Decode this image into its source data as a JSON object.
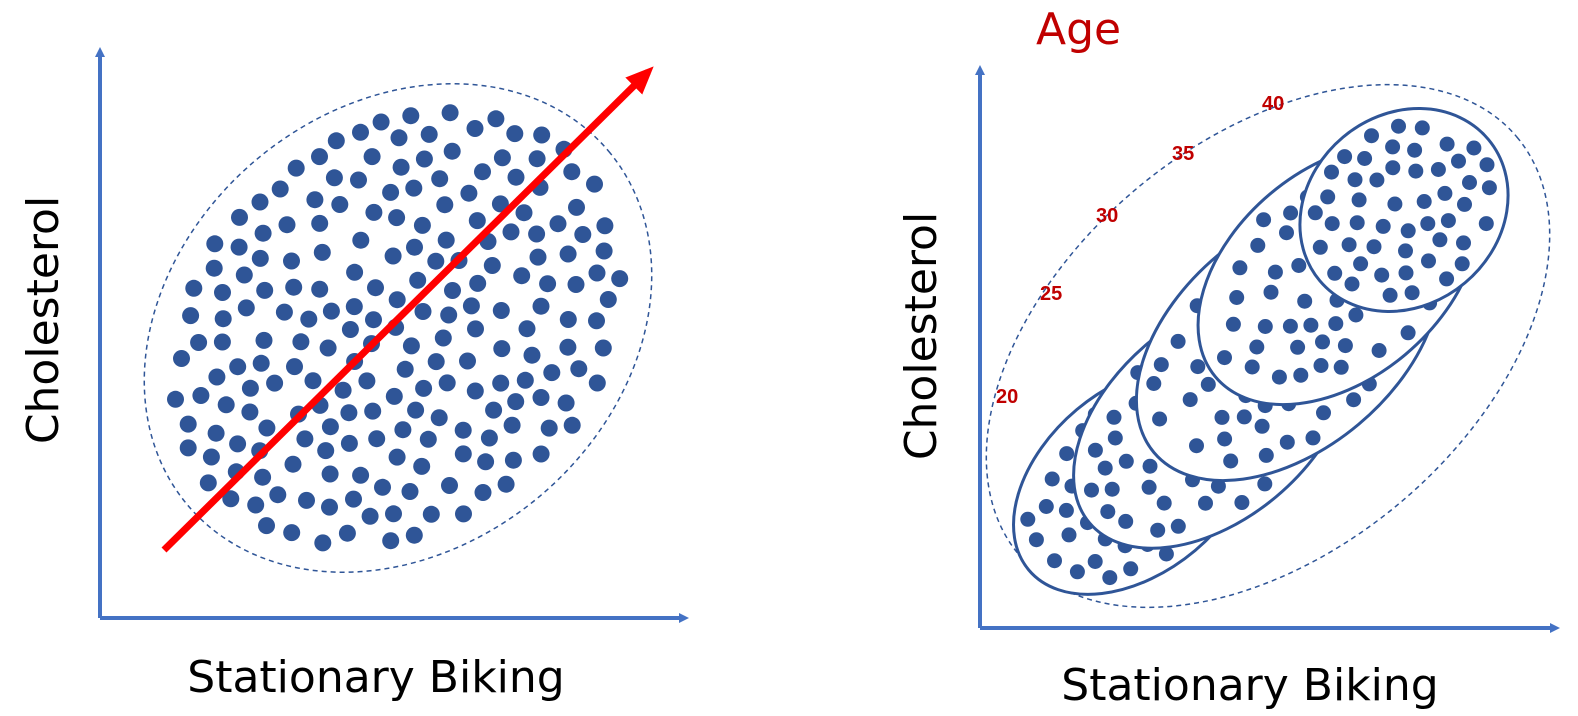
{
  "colors": {
    "axis": "#4472C4",
    "dot": "#2F5597",
    "trend_arrow": "#FF0000",
    "age_text": "#C00000",
    "envelope": "#2F5597"
  },
  "left_panel": {
    "x_axis_label": "Stationary Biking",
    "y_axis_label": "Cholesterol"
  },
  "right_panel": {
    "title": "Age",
    "x_axis_label": "Stationary Biking",
    "y_axis_label": "Cholesterol",
    "age_groups": [
      {
        "label": "20"
      },
      {
        "label": "25"
      },
      {
        "label": "30"
      },
      {
        "label": "35"
      },
      {
        "label": "40"
      }
    ]
  }
}
